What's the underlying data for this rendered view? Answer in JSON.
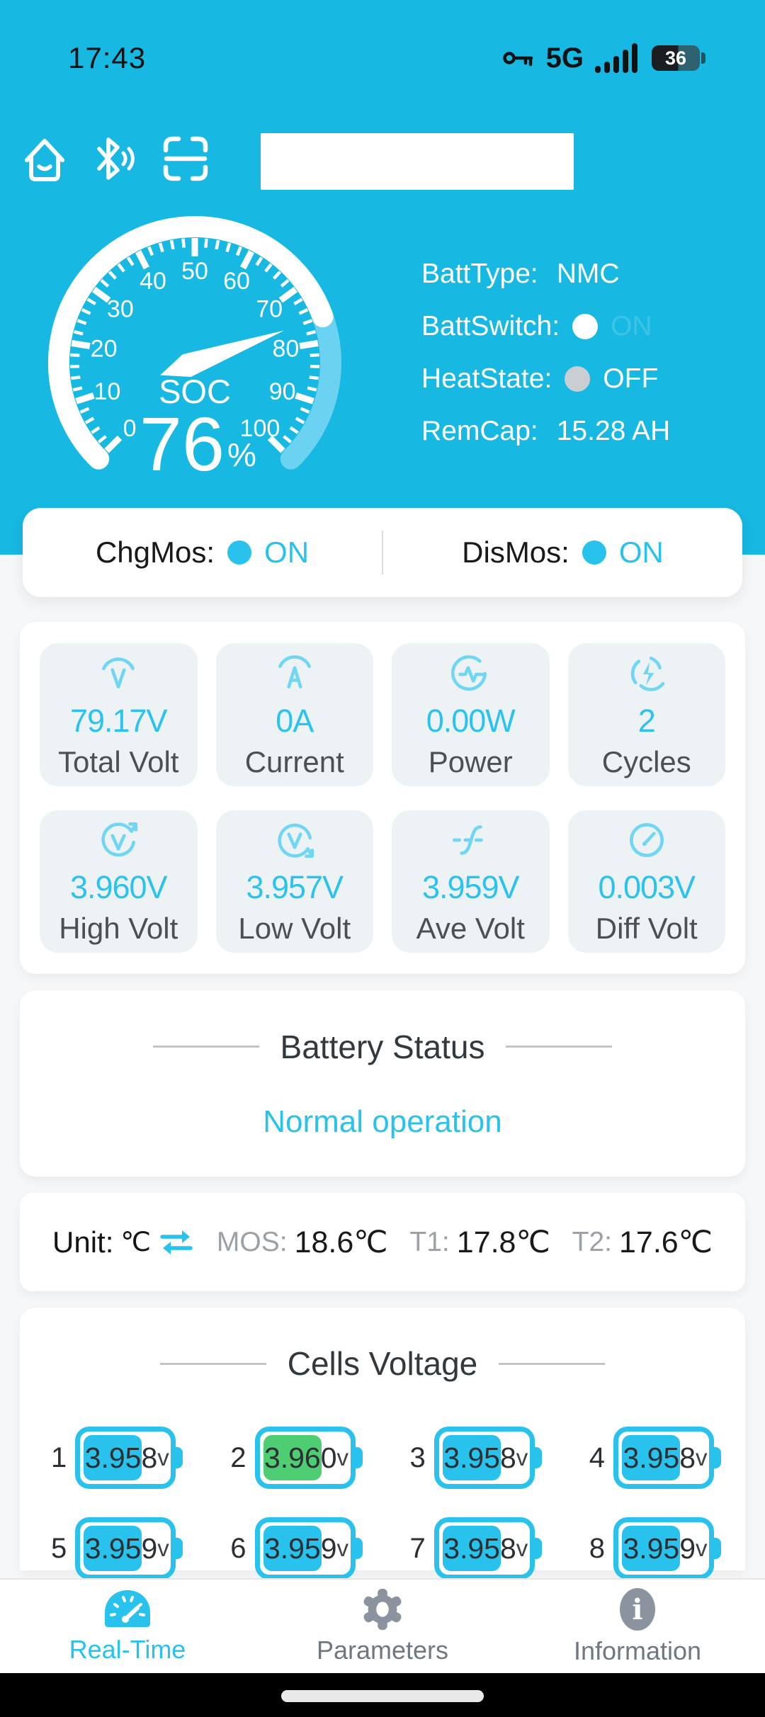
{
  "colors": {
    "header_cyan": "#17b8e2",
    "accent": "#29c2ec",
    "icon_cyan": "#70d6f3",
    "gauge_rest": "#6bd3f1",
    "cell_green": "#4fcd72",
    "tile_bg": "#edf2f5",
    "gray_label": "#9ba1a7",
    "nav_gray": "#8b939e"
  },
  "status_bar": {
    "time": "17:43",
    "network": "5G",
    "battery_percent": "36"
  },
  "header": {
    "device_input_value": "",
    "device_input_placeholder": ""
  },
  "gauge": {
    "label": "SOC",
    "value": 76,
    "value_text": "76",
    "unit": "%",
    "min": 0,
    "max": 100,
    "tick_major": 10,
    "tick_minor": 2,
    "tick_labels": [
      "0",
      "10",
      "20",
      "30",
      "40",
      "50",
      "60",
      "70",
      "80",
      "90",
      "100"
    ]
  },
  "info": {
    "batt_type_label": "BattType:",
    "batt_type": "NMC",
    "batt_switch_label": "BattSwitch:",
    "batt_switch_state": "ON",
    "heat_state_label": "HeatState:",
    "heat_state": "OFF",
    "rem_cap_label": "RemCap:",
    "rem_cap": "15.28 AH"
  },
  "mos": {
    "chg_label": "ChgMos:",
    "chg_state": "ON",
    "dis_label": "DisMos:",
    "dis_state": "ON"
  },
  "stats": [
    {
      "icon": "total-volt-icon",
      "value": "79.17V",
      "label": "Total Volt"
    },
    {
      "icon": "current-icon",
      "value": "0A",
      "label": "Current"
    },
    {
      "icon": "power-icon",
      "value": "0.00W",
      "label": "Power"
    },
    {
      "icon": "cycles-icon",
      "value": "2",
      "label": "Cycles"
    },
    {
      "icon": "high-volt-icon",
      "value": "3.960V",
      "label": "High Volt"
    },
    {
      "icon": "low-volt-icon",
      "value": "3.957V",
      "label": "Low Volt"
    },
    {
      "icon": "ave-volt-icon",
      "value": "3.959V",
      "label": "Ave Volt"
    },
    {
      "icon": "diff-volt-icon",
      "value": "0.003V",
      "label": "Diff Volt"
    }
  ],
  "battery_status": {
    "title": "Battery Status",
    "value": "Normal operation"
  },
  "temperature": {
    "unit_label": "Unit:",
    "unit": "℃",
    "mos_label": "MOS:",
    "mos": "18.6℃",
    "t1_label": "T1:",
    "t1": "17.8℃",
    "t2_label": "T2:",
    "t2": "17.6℃"
  },
  "cells": {
    "title": "Cells Voltage",
    "items": [
      {
        "index": "1",
        "value": "3.958",
        "unit": "v",
        "highlight": false
      },
      {
        "index": "2",
        "value": "3.960",
        "unit": "v",
        "highlight": true
      },
      {
        "index": "3",
        "value": "3.958",
        "unit": "v",
        "highlight": false
      },
      {
        "index": "4",
        "value": "3.958",
        "unit": "v",
        "highlight": false
      },
      {
        "index": "5",
        "value": "3.959",
        "unit": "v",
        "highlight": false
      },
      {
        "index": "6",
        "value": "3.959",
        "unit": "v",
        "highlight": false
      },
      {
        "index": "7",
        "value": "3.958",
        "unit": "v",
        "highlight": false
      },
      {
        "index": "8",
        "value": "3.959",
        "unit": "v",
        "highlight": false
      }
    ]
  },
  "nav": {
    "items": [
      {
        "label": "Real-Time",
        "active": true
      },
      {
        "label": "Parameters",
        "active": false
      },
      {
        "label": "Information",
        "active": false
      }
    ]
  }
}
